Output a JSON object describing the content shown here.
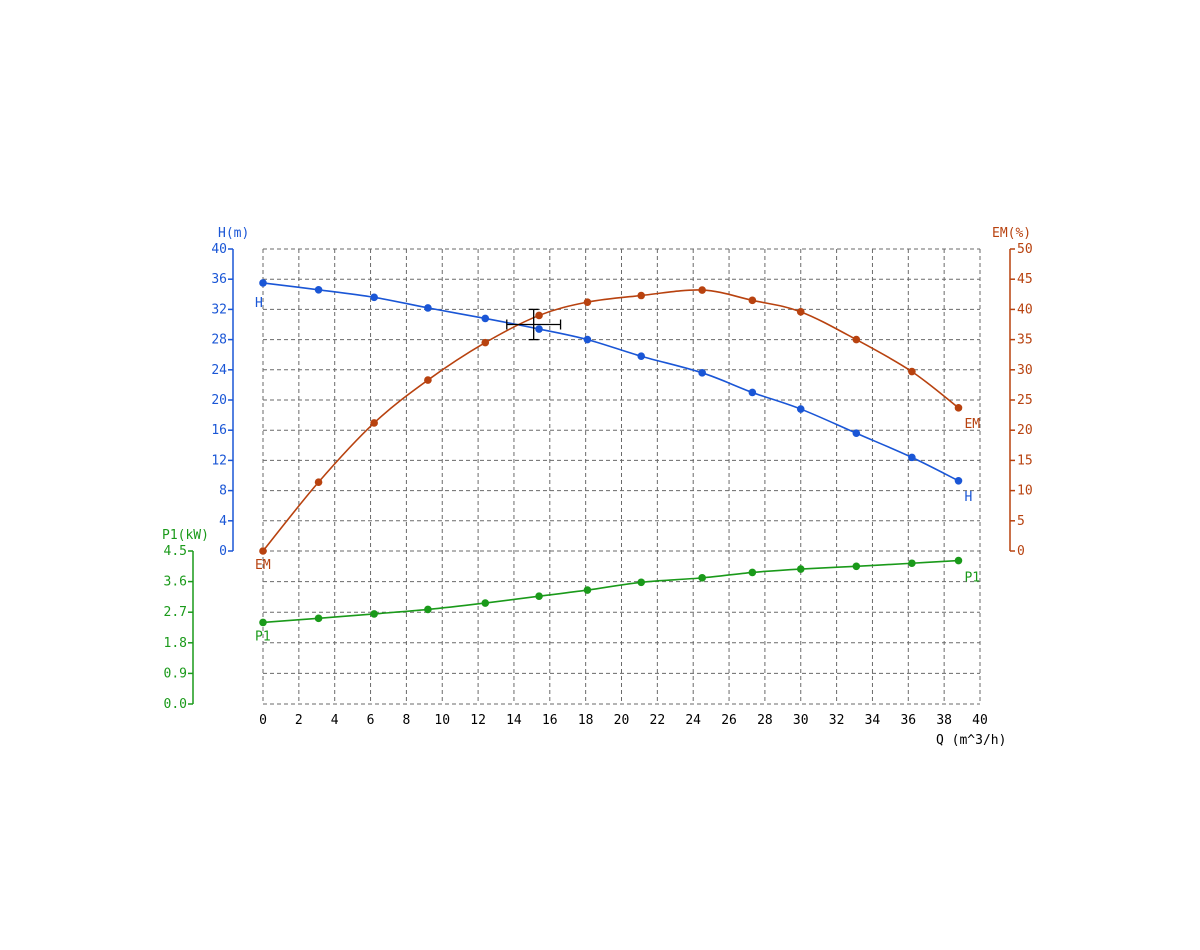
{
  "chart_data": {
    "type": "line",
    "title": "",
    "xlabel": "Q (m^3/h)",
    "xlim": [
      0,
      40
    ],
    "xticks": [
      0,
      2,
      4,
      6,
      8,
      10,
      12,
      14,
      16,
      18,
      20,
      22,
      24,
      26,
      28,
      30,
      32,
      34,
      36,
      38,
      40
    ],
    "grid": true,
    "colors": {
      "H": "#1a56d6",
      "EM": "#b8420f",
      "P1": "#1a9a1a",
      "marker": "#000000"
    },
    "axes": {
      "H": {
        "label": "H(m)",
        "ylim": [
          0,
          40
        ],
        "ticks": [
          0,
          4,
          8,
          12,
          16,
          20,
          24,
          28,
          32,
          36,
          40
        ],
        "tick_labels": [
          "0",
          "4",
          "8",
          "12",
          "16",
          "20",
          "24",
          "28",
          "32",
          "36",
          "40"
        ],
        "side": "left"
      },
      "EM": {
        "label": "EM(%)",
        "ylim": [
          0,
          50
        ],
        "ticks": [
          0,
          5,
          10,
          15,
          20,
          25,
          30,
          35,
          40,
          45,
          50
        ],
        "tick_labels": [
          "0",
          "5",
          "10",
          "15",
          "20",
          "25",
          "30",
          "35",
          "40",
          "45",
          "50"
        ],
        "side": "right"
      },
      "P1": {
        "label": "P1(kW)",
        "ylim": [
          0,
          4.5
        ],
        "ticks": [
          0,
          0.9,
          1.8,
          2.7,
          3.6,
          4.5
        ],
        "tick_labels": [
          "0.0",
          "0.9",
          "1.8",
          "2.7",
          "3.6",
          "4.5"
        ],
        "side": "left-lower"
      }
    },
    "series": [
      {
        "name": "H",
        "axis": "H",
        "x": [
          0,
          3.1,
          6.2,
          9.2,
          12.4,
          15.4,
          18.1,
          21.1,
          24.5,
          27.3,
          30.0,
          33.1,
          36.2,
          38.8
        ],
        "y": [
          35.5,
          34.6,
          33.6,
          32.2,
          30.8,
          29.4,
          28.0,
          25.8,
          23.6,
          21.0,
          18.8,
          15.6,
          12.4,
          9.3
        ],
        "end_labels": [
          "H",
          "H"
        ]
      },
      {
        "name": "EM",
        "axis": "EM",
        "x": [
          0,
          3.1,
          6.2,
          9.2,
          12.4,
          15.4,
          18.1,
          21.1,
          24.5,
          27.3,
          30.0,
          33.1,
          36.2,
          38.8
        ],
        "y": [
          0,
          11.4,
          21.2,
          28.3,
          34.5,
          39.0,
          41.2,
          42.3,
          43.2,
          41.5,
          39.6,
          35.0,
          29.7,
          23.7
        ],
        "end_labels": [
          "EM",
          "EM"
        ]
      },
      {
        "name": "P1",
        "axis": "P1",
        "x": [
          0,
          3.1,
          6.2,
          9.2,
          12.4,
          15.4,
          18.1,
          21.1,
          24.5,
          27.3,
          30.0,
          33.1,
          36.2,
          38.8
        ],
        "y": [
          2.4,
          2.52,
          2.65,
          2.78,
          2.97,
          3.17,
          3.35,
          3.58,
          3.71,
          3.87,
          3.97,
          4.05,
          4.14,
          4.22
        ],
        "end_labels": [
          "P1",
          "P1"
        ]
      }
    ],
    "operating_point": {
      "x": 15.1,
      "y": 30.0,
      "axis": "H",
      "x_error": 1.5,
      "y_error": 2.0
    }
  }
}
